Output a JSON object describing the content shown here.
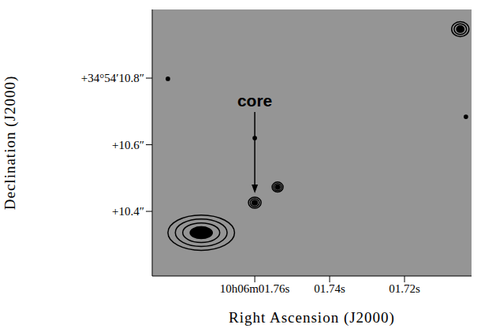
{
  "chart_data": {
    "type": "contour",
    "x_label": "Right Ascension (J2000)",
    "y_label": "Declination (J2000)",
    "xlim": [
      1.7874,
      1.7021
    ],
    "ylim": [
      10.206,
      11.006
    ],
    "xticks": [
      {
        "value": 1.76,
        "label": "10h06m01.76s"
      },
      {
        "value": 1.74,
        "label": "01.74s"
      },
      {
        "value": 1.72,
        "label": "01.72s"
      }
    ],
    "yticks": [
      {
        "value": 10.8,
        "label": "+34°54′10.8″"
      },
      {
        "value": 10.6,
        "label": "+10.6″"
      },
      {
        "value": 10.4,
        "label": "+10.4″"
      }
    ],
    "sources": {
      "x": [
        1.76,
        1.7539,
        1.7743,
        1.7051,
        1.7832,
        1.76,
        1.7036
      ],
      "y": [
        10.426,
        10.473,
        10.336,
        10.947,
        10.798,
        10.62,
        10.684
      ],
      "major": [
        0.038,
        0.033,
        0.2,
        0.052,
        0.01,
        0.01,
        0.01
      ],
      "minor": [
        0.033,
        0.03,
        0.106,
        0.045,
        0.01,
        0.01,
        0.01
      ],
      "levels": [
        3,
        3,
        4,
        3,
        1,
        1,
        1
      ]
    },
    "annotations": [
      {
        "text": "core",
        "x": 1.76,
        "y": 10.426
      }
    ],
    "color": "#000000"
  }
}
